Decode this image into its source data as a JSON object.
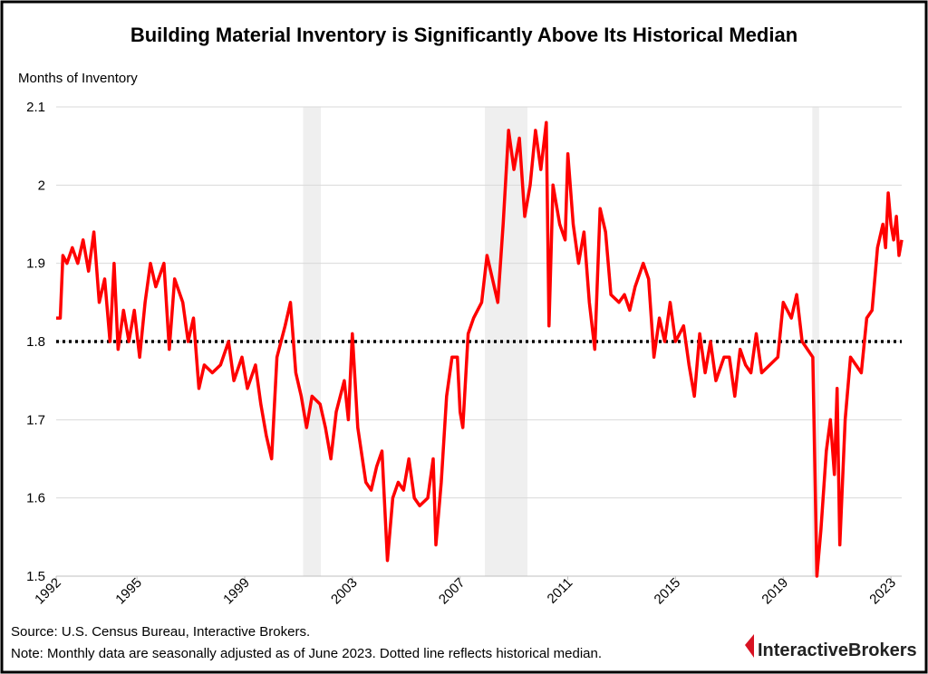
{
  "chart_data": {
    "type": "line",
    "title": "Building Material Inventory is Significantly Above Its Historical Median",
    "y_label": "Months of Inventory",
    "source": "Source: U.S. Census Bureau, Interactive Brokers.",
    "note": "Note: Monthly data are seasonally adjusted as of June 2023. Dotted line reflects historical median.",
    "logo": "InteractiveBrokers",
    "xlim": [
      1992,
      2023.4
    ],
    "xticks": [
      1992,
      1995,
      1999,
      2003,
      2007,
      2011,
      2015,
      2019,
      2023
    ],
    "ylim": [
      1.5,
      2.1
    ],
    "yticks": [
      1.5,
      1.6,
      1.7,
      1.8,
      1.9,
      2.0,
      2.1
    ],
    "grid": true,
    "median": 1.8,
    "shaded_ranges": [
      [
        2001.17,
        2001.83
      ],
      [
        2007.92,
        2009.5
      ],
      [
        2020.08,
        2020.33
      ]
    ],
    "x": [
      1992.0,
      1992.15,
      1992.25,
      1992.4,
      1992.6,
      1992.8,
      1993.0,
      1993.2,
      1993.4,
      1993.6,
      1993.8,
      1994.0,
      1994.15,
      1994.3,
      1994.5,
      1994.7,
      1994.9,
      1995.1,
      1995.3,
      1995.5,
      1995.7,
      1996.0,
      1996.2,
      1996.4,
      1996.7,
      1996.9,
      1997.1,
      1997.3,
      1997.5,
      1997.8,
      1998.1,
      1998.4,
      1998.6,
      1998.9,
      1999.1,
      1999.4,
      1999.6,
      1999.8,
      2000.0,
      2000.2,
      2000.5,
      2000.7,
      2000.9,
      2001.1,
      2001.3,
      2001.5,
      2001.8,
      2002.0,
      2002.2,
      2002.4,
      2002.7,
      2002.85,
      2003.0,
      2003.2,
      2003.5,
      2003.7,
      2003.9,
      2004.1,
      2004.3,
      2004.5,
      2004.7,
      2004.9,
      2005.1,
      2005.3,
      2005.5,
      2005.8,
      2006.0,
      2006.1,
      2006.3,
      2006.5,
      2006.7,
      2006.9,
      2007.0,
      2007.1,
      2007.3,
      2007.5,
      2007.8,
      2008.0,
      2008.2,
      2008.4,
      2008.6,
      2008.8,
      2009.0,
      2009.2,
      2009.4,
      2009.6,
      2009.8,
      2010.0,
      2010.2,
      2010.3,
      2010.45,
      2010.7,
      2010.9,
      2011.0,
      2011.2,
      2011.4,
      2011.6,
      2011.8,
      2012.0,
      2012.2,
      2012.4,
      2012.6,
      2012.9,
      2013.1,
      2013.3,
      2013.5,
      2013.8,
      2014.0,
      2014.2,
      2014.4,
      2014.6,
      2014.8,
      2015.0,
      2015.3,
      2015.5,
      2015.7,
      2015.9,
      2016.1,
      2016.3,
      2016.5,
      2016.8,
      2017.0,
      2017.2,
      2017.4,
      2017.6,
      2017.8,
      2018.0,
      2018.2,
      2018.5,
      2018.8,
      2019.0,
      2019.3,
      2019.5,
      2019.7,
      2019.9,
      2020.1,
      2020.25,
      2020.4,
      2020.6,
      2020.75,
      2020.9,
      2021.0,
      2021.1,
      2021.3,
      2021.5,
      2021.7,
      2021.9,
      2022.1,
      2022.3,
      2022.5,
      2022.7,
      2022.8,
      2022.9,
      2023.0,
      2023.1,
      2023.2,
      2023.3,
      2023.4
    ],
    "series": [
      {
        "name": "Months of Inventory",
        "color": "#ff0000",
        "values": [
          1.83,
          1.83,
          1.91,
          1.9,
          1.92,
          1.9,
          1.93,
          1.89,
          1.94,
          1.85,
          1.88,
          1.8,
          1.9,
          1.79,
          1.84,
          1.8,
          1.84,
          1.78,
          1.85,
          1.9,
          1.87,
          1.9,
          1.79,
          1.88,
          1.85,
          1.8,
          1.83,
          1.74,
          1.77,
          1.76,
          1.77,
          1.8,
          1.75,
          1.78,
          1.74,
          1.77,
          1.72,
          1.68,
          1.65,
          1.78,
          1.82,
          1.85,
          1.76,
          1.73,
          1.69,
          1.73,
          1.72,
          1.69,
          1.65,
          1.71,
          1.75,
          1.7,
          1.81,
          1.69,
          1.62,
          1.61,
          1.64,
          1.66,
          1.52,
          1.6,
          1.62,
          1.61,
          1.65,
          1.6,
          1.59,
          1.6,
          1.65,
          1.54,
          1.62,
          1.73,
          1.78,
          1.78,
          1.71,
          1.69,
          1.81,
          1.83,
          1.85,
          1.91,
          1.88,
          1.85,
          1.95,
          2.07,
          2.02,
          2.06,
          1.96,
          2.0,
          2.07,
          2.02,
          2.08,
          1.82,
          2.0,
          1.95,
          1.93,
          2.04,
          1.95,
          1.9,
          1.94,
          1.85,
          1.79,
          1.97,
          1.94,
          1.86,
          1.85,
          1.86,
          1.84,
          1.87,
          1.9,
          1.88,
          1.78,
          1.83,
          1.8,
          1.85,
          1.8,
          1.82,
          1.77,
          1.73,
          1.81,
          1.76,
          1.8,
          1.75,
          1.78,
          1.78,
          1.73,
          1.79,
          1.77,
          1.76,
          1.81,
          1.76,
          1.77,
          1.78,
          1.85,
          1.83,
          1.86,
          1.8,
          1.79,
          1.78,
          1.5,
          1.56,
          1.66,
          1.7,
          1.63,
          1.74,
          1.54,
          1.7,
          1.78,
          1.77,
          1.76,
          1.83,
          1.84,
          1.92,
          1.95,
          1.92,
          1.99,
          1.95,
          1.93,
          1.96,
          1.91,
          1.93
        ]
      }
    ]
  }
}
